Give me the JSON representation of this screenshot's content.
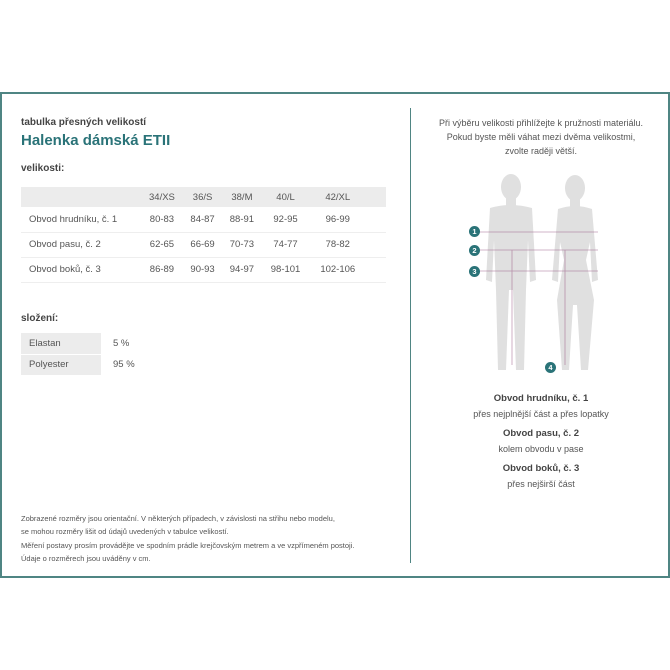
{
  "header": {
    "subtitle": "tabulka přesných velikostí",
    "title": "Halenka dámská ETII"
  },
  "sizes": {
    "heading": "velikosti:",
    "columns": [
      "34/XS",
      "36/S",
      "38/M",
      "40/L",
      "42/XL"
    ],
    "rows": [
      {
        "label": "Obvod hrudníku, č. 1",
        "values": [
          "80-83",
          "84-87",
          "88-91",
          "92-95",
          "96-99"
        ]
      },
      {
        "label": "Obvod pasu, č. 2",
        "values": [
          "62-65",
          "66-69",
          "70-73",
          "74-77",
          "78-82"
        ]
      },
      {
        "label": "Obvod boků, č. 3",
        "values": [
          "86-89",
          "90-93",
          "94-97",
          "98-101",
          "102-106"
        ]
      }
    ]
  },
  "composition": {
    "heading": "složení:",
    "items": [
      {
        "material": "Elastan",
        "percent": "5 %"
      },
      {
        "material": "Polyester",
        "percent": "95 %"
      }
    ]
  },
  "notes": [
    "Zobrazené rozměry jsou orientační. V některých případech, v závislosti na střihu nebo modelu,",
    "se mohou rozměry lišit od údajů uvedených v tabulce velikostí.",
    "Měření postavy prosím provádějte ve spodním prádle krejčovským metrem a ve vzpřímeném postoji.",
    "Údaje o rozměrech jsou uváděny v cm."
  ],
  "guide": {
    "intro": [
      "Při výběru velikosti přihlížejte k pružnosti materiálu.",
      "Pokud byste měli váhat mezi dvěma velikostmi,",
      "zvolte raději větší."
    ],
    "badges": [
      "1",
      "2",
      "3",
      "4"
    ],
    "measures": [
      {
        "name": "Obvod hrudníku, č. 1",
        "desc": "přes nejplnější část a přes lopatky"
      },
      {
        "name": "Obvod pasu, č. 2",
        "desc": "kolem obvodu v pase"
      },
      {
        "name": "Obvod boků, č. 3",
        "desc": "přes nejširší část"
      }
    ]
  },
  "colors": {
    "accent": "#2a7378",
    "border": "#4f8583",
    "line": "#9b5b86",
    "silhouette": "#e0e0e0"
  }
}
